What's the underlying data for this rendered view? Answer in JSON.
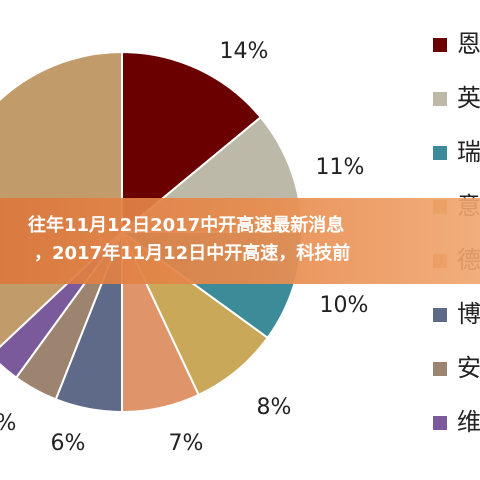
{
  "chart_data": {
    "type": "pie",
    "title": "",
    "slices": [
      {
        "label": "14%",
        "value": 14,
        "color": "#6b0000"
      },
      {
        "label": "11%",
        "value": 11,
        "color": "#bdb9a8"
      },
      {
        "label": "10%",
        "value": 10,
        "color": "#3b8b99"
      },
      {
        "label": "8%",
        "value": 8,
        "color": "#c9a85a"
      },
      {
        "label": "7%",
        "value": 7,
        "color": "#e0946a"
      },
      {
        "label": "6%",
        "value": 6,
        "color": "#5f6a88"
      },
      {
        "label": "",
        "value": 4,
        "color": "#9c8470"
      },
      {
        "label": "",
        "value": 3,
        "color": "#7a5a9a"
      },
      {
        "label": "",
        "value": 37,
        "color": "#c19c6a"
      }
    ],
    "outside_labels": [
      {
        "text": "14%"
      },
      {
        "text": "11%"
      },
      {
        "text": "10%"
      },
      {
        "text": "8%"
      },
      {
        "text": "7%"
      },
      {
        "text": "6%"
      },
      {
        "text": "%"
      }
    ],
    "legend": [
      {
        "text": "恩",
        "color": "#6b0000"
      },
      {
        "text": "英",
        "color": "#bdb9a8"
      },
      {
        "text": "瑞",
        "color": "#3b8b99"
      },
      {
        "text": "意",
        "color": "#c9a85a"
      },
      {
        "text": "德",
        "color": "#e0946a"
      },
      {
        "text": "博",
        "color": "#5f6a88"
      },
      {
        "text": "安",
        "color": "#9c8470"
      },
      {
        "text": "维",
        "color": "#7a5a9a"
      }
    ],
    "legend_position": "right"
  },
  "banner": {
    "line1": "往年11月12日2017中开高速最新消息",
    "line2": "，2017年11月12日中开高速，科技前"
  }
}
